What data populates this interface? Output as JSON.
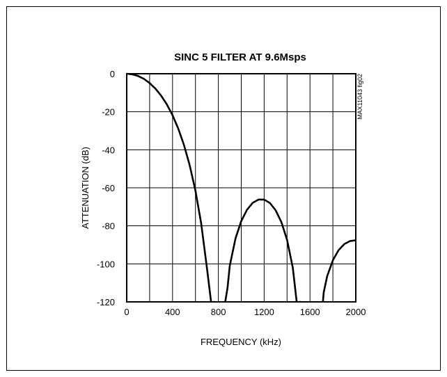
{
  "chart_data": {
    "type": "line",
    "title": "SINC 5 FILTER AT 9.6Msps",
    "xlabel": "FREQUENCY (kHz)",
    "ylabel": "ATTENUATION (dB)",
    "figure_id": "MAX11043 fig02",
    "xlim": [
      0,
      2000
    ],
    "ylim": [
      -120,
      0
    ],
    "x_ticks": [
      "0",
      "400",
      "800",
      "1200",
      "1600",
      "2000"
    ],
    "y_ticks": [
      "0",
      "-20",
      "-40",
      "-60",
      "-80",
      "-100",
      "-120"
    ],
    "grid": true,
    "line_color": "#000000",
    "series": [
      {
        "x": [
          0,
          50,
          100,
          150,
          200,
          250,
          300,
          350,
          400,
          450,
          500,
          550,
          600,
          650,
          700,
          740,
          760,
          770
        ],
        "y": [
          0,
          -0.3,
          -1.2,
          -2.7,
          -4.9,
          -7.8,
          -11.5,
          -16.1,
          -21.8,
          -28.9,
          -37.5,
          -48.2,
          -61.5,
          -78.7,
          -102.0,
          -121.7,
          -120,
          -120
        ]
      },
      {
        "x": [
          860,
          880,
          900,
          950,
          1000,
          1050,
          1100,
          1150,
          1200,
          1250,
          1300,
          1350,
          1400,
          1450,
          1500,
          1510,
          1520
        ],
        "y": [
          -120,
          -112.7,
          -100.9,
          -86.6,
          -77.5,
          -71.6,
          -67.9,
          -66.2,
          -66.2,
          -68.0,
          -71.8,
          -78.0,
          -87.4,
          -102.0,
          -128.4,
          -120,
          -120
        ]
      },
      {
        "x": [
          1700,
          1710,
          1720,
          1750,
          1800,
          1850,
          1900,
          1950,
          2000
        ],
        "y": [
          -120,
          -121.8,
          -115.0,
          -106.5,
          -98.1,
          -92.8,
          -89.6,
          -88.0,
          -87.6
        ]
      }
    ]
  }
}
